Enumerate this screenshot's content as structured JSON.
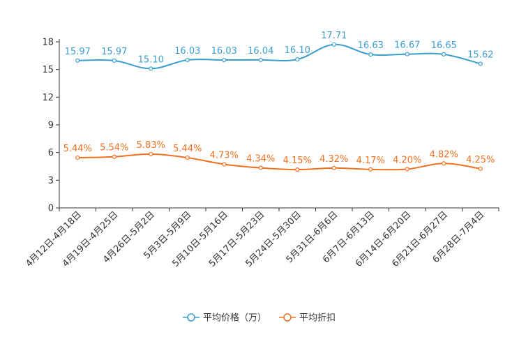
{
  "chart_data": {
    "type": "line",
    "title": "",
    "xlabel": "",
    "ylabel": "",
    "ylim": [
      0,
      18
    ],
    "yticks": [
      0,
      3,
      6,
      9,
      12,
      15,
      18
    ],
    "grid": false,
    "legend_position": "bottom-center",
    "categories": [
      "4月12日-4月18日",
      "4月19日-4月25日",
      "4月26日-5月2日",
      "5月3日-5月9日",
      "5月10日-5月16日",
      "5月17日-5月23日",
      "5月24日-5月30日",
      "5月31日-6月6日",
      "6月7日-6月13日",
      "6月14日-6月20日",
      "6月21日-6月27日",
      "6月28日-7月4日"
    ],
    "series": [
      {
        "name": "平均价格（万）",
        "color": "#3a9fd0",
        "values": [
          15.97,
          15.97,
          15.1,
          16.03,
          16.03,
          16.04,
          16.1,
          17.71,
          16.63,
          16.67,
          16.65,
          15.62
        ],
        "labels": [
          "15.97",
          "15.97",
          "15.10",
          "16.03",
          "16.03",
          "16.04",
          "16.10",
          "17.71",
          "16.63",
          "16.67",
          "16.65",
          "15.62"
        ]
      },
      {
        "name": "平均折扣",
        "color": "#f07020",
        "values": [
          5.44,
          5.54,
          5.83,
          5.44,
          4.73,
          4.34,
          4.15,
          4.32,
          4.17,
          4.2,
          4.82,
          4.25
        ],
        "labels": [
          "5.44%",
          "5.54%",
          "5.83%",
          "5.44%",
          "4.73%",
          "4.34%",
          "4.15%",
          "4.32%",
          "4.17%",
          "4.20%",
          "4.82%",
          "4.25%"
        ]
      }
    ]
  }
}
